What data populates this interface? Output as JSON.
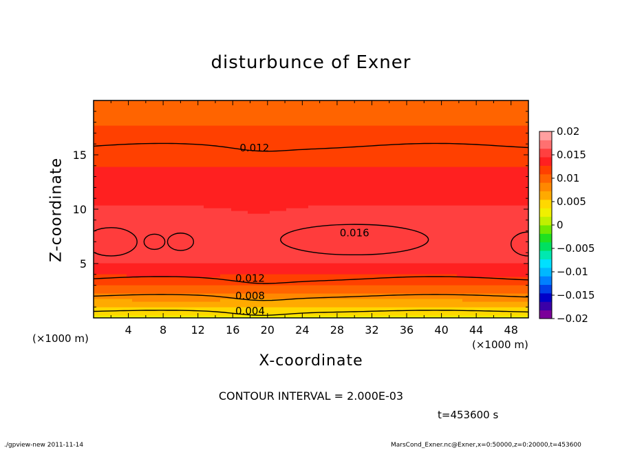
{
  "chart_data": {
    "type": "heatmap",
    "title": "disturbunce of Exner",
    "xlabel": "X-coordinate",
    "ylabel": "Z-coordinate",
    "x_unit_left": "(×1000 m)",
    "x_unit_right": "(×1000 m)",
    "xlim": [
      0,
      50
    ],
    "ylim": [
      0,
      20
    ],
    "x_ticks": [
      4,
      8,
      12,
      16,
      20,
      24,
      28,
      32,
      36,
      40,
      44,
      48
    ],
    "y_ticks": [
      5,
      10,
      15
    ],
    "contour_interval_text": "CONTOUR INTERVAL = 2.000E-03",
    "time_text": "t=453600 s",
    "contour_labels": [
      {
        "text": "0.012",
        "x": 18.5,
        "y": 15.6
      },
      {
        "text": "0.016",
        "x": 30.0,
        "y": 7.8
      },
      {
        "text": "0.012",
        "x": 18.0,
        "y": 3.6
      },
      {
        "text": "0.008",
        "x": 18.0,
        "y": 2.0
      },
      {
        "text": "0.004",
        "x": 18.0,
        "y": 0.6
      }
    ],
    "colorbar": {
      "ticks": [
        "0.02",
        "0.015",
        "0.01",
        "0.005",
        "0",
        "−0.005",
        "−0.01",
        "−0.015",
        "−0.02"
      ],
      "range": [
        -0.02,
        0.02
      ],
      "colors_low_to_high": [
        "#7b0099",
        "#3a00a8",
        "#0000c8",
        "#0040e8",
        "#0080ff",
        "#00b8ff",
        "#00e0ff",
        "#00e8b0",
        "#00e060",
        "#20e020",
        "#70e800",
        "#c0f000",
        "#f0f000",
        "#ffd800",
        "#ffaa00",
        "#ff8800",
        "#ff6400",
        "#ff4000",
        "#ff2020",
        "#ff4040",
        "#ff7070",
        "#ffa0a0"
      ]
    },
    "vertical_profile": {
      "z": [
        0,
        0.3,
        0.6,
        1.0,
        1.5,
        2.0,
        2.5,
        3.0,
        3.5,
        4.0,
        4.5,
        5.0,
        6.0,
        7.0,
        8.0,
        9.0,
        10.0,
        11.0,
        12.0,
        13.0,
        14.0,
        15.0,
        16.0,
        17.0,
        18.0,
        19.0,
        20.0
      ],
      "value": [
        0.003,
        0.0035,
        0.0045,
        0.0055,
        0.0068,
        0.0082,
        0.0095,
        0.0108,
        0.0118,
        0.0128,
        0.0138,
        0.0145,
        0.0152,
        0.0155,
        0.0154,
        0.0151,
        0.0147,
        0.0142,
        0.0137,
        0.0132,
        0.0127,
        0.0122,
        0.0118,
        0.0113,
        0.0108,
        0.0104,
        0.01
      ]
    }
  },
  "footer": {
    "left": "./gpview-new   2011-11-14",
    "right": "MarsCond_Exner.nc@Exner,x=0:50000,z=0:20000,t=453600"
  }
}
